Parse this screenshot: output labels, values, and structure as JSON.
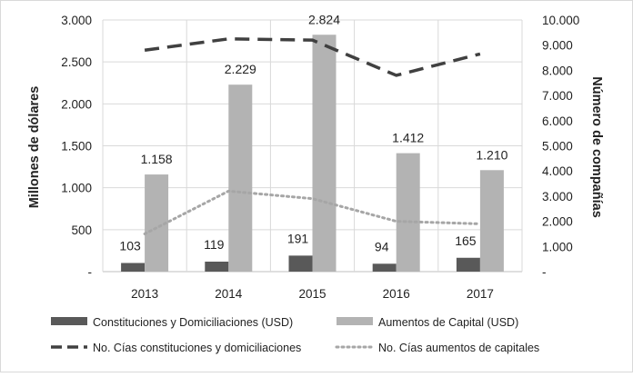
{
  "chart_data": {
    "type": "bar",
    "categories": [
      "2013",
      "2014",
      "2015",
      "2016",
      "2017"
    ],
    "y_left": {
      "label": "Millones de dólares",
      "ylim": [
        0,
        3000
      ],
      "ticks": [
        0,
        500,
        1000,
        1500,
        2000,
        2500,
        3000
      ],
      "tick_labels": [
        "-",
        "500",
        "1.000",
        "1.500",
        "2.000",
        "2.500",
        "3.000"
      ]
    },
    "y_right": {
      "label": "Número de compañías",
      "ylim": [
        0,
        10000
      ],
      "ticks": [
        0,
        1000,
        2000,
        3000,
        4000,
        5000,
        6000,
        7000,
        8000,
        9000,
        10000
      ],
      "tick_labels": [
        "-",
        "1.000",
        "2.000",
        "3.000",
        "4.000",
        "5.000",
        "6.000",
        "7.000",
        "8.000",
        "9.000",
        "10.000"
      ]
    },
    "grid": true,
    "legend_position": "bottom",
    "series": [
      {
        "name": "Constituciones y Domiciliaciones (USD)",
        "kind": "bar",
        "axis": "left",
        "color": "#595959",
        "values": [
          103,
          119,
          191,
          94,
          165
        ],
        "labels": [
          "103",
          "119",
          "191",
          "94",
          "165"
        ]
      },
      {
        "name": "Aumentos de Capital (USD)",
        "kind": "bar",
        "axis": "left",
        "color": "#b3b3b3",
        "values": [
          1158,
          2229,
          2824,
          1412,
          1210
        ],
        "labels": [
          "1.158",
          "2.229",
          "2.824",
          "1.412",
          "1.210"
        ]
      },
      {
        "name": "No. Cías constituciones y domiciliaciones",
        "kind": "line",
        "style": "dashed",
        "axis": "right",
        "color": "#404040",
        "values": [
          8800,
          9250,
          9200,
          7800,
          8650
        ]
      },
      {
        "name": "No. Cías aumentos de capitales",
        "kind": "line",
        "style": "dotted",
        "axis": "right",
        "color": "#a6a6a6",
        "values": [
          1500,
          3200,
          2900,
          2000,
          1900
        ]
      }
    ]
  }
}
